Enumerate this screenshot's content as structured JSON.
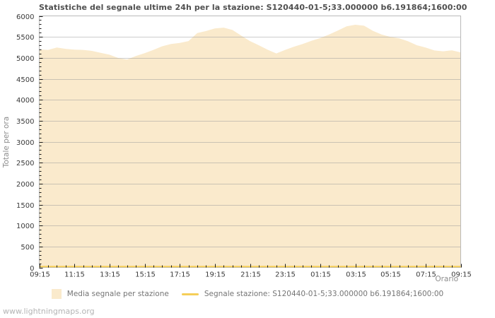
{
  "page": {
    "watermark": "www.lightningmaps.org"
  },
  "chart": {
    "title": "Statistiche del segnale ultime 24h per la stazione: S120440-01-5;33.000000 b6.191864;1600:00",
    "ylabel": "Totale per ora",
    "xlabel": "Orario"
  },
  "legend": {
    "items": [
      {
        "label": "Media segnale per stazione",
        "swatch": "area",
        "color": "#FAEACC"
      },
      {
        "label": "Segnale stazione: S120440-01-5;33.000000 b6.191864;1600:00",
        "swatch": "line",
        "color": "#F5CE58"
      }
    ]
  },
  "chart_data": {
    "type": "area",
    "title": "Statistiche del segnale ultime 24h per la stazione: S120440-01-5;33.000000 b6.191864;1600:00",
    "xlabel": "Orario",
    "ylabel": "Totale per ora",
    "ylim": [
      0,
      6000
    ],
    "y_major_step": 500,
    "y_minor_step": 100,
    "grid": true,
    "legend_position": "bottom",
    "grid_color": "#999999",
    "border_color": "#b9b9b9",
    "tick_color": "#1a1a1a",
    "tick_label_color": "#3a3a3a",
    "x": [
      "09:15",
      "09:45",
      "10:15",
      "10:45",
      "11:15",
      "11:45",
      "12:15",
      "12:45",
      "13:15",
      "13:45",
      "14:15",
      "14:45",
      "15:15",
      "15:45",
      "16:15",
      "16:45",
      "17:15",
      "17:45",
      "18:15",
      "18:45",
      "19:15",
      "19:45",
      "20:15",
      "20:45",
      "21:15",
      "21:45",
      "22:15",
      "22:45",
      "23:15",
      "23:45",
      "00:15",
      "00:45",
      "01:15",
      "01:45",
      "02:15",
      "02:45",
      "03:15",
      "03:45",
      "04:15",
      "04:45",
      "05:15",
      "05:45",
      "06:15",
      "06:45",
      "07:15",
      "07:45",
      "08:15",
      "08:45",
      "09:15"
    ],
    "x_tick_labels": [
      "09:15",
      "11:15",
      "13:15",
      "15:15",
      "17:15",
      "19:15",
      "21:15",
      "23:15",
      "01:15",
      "03:15",
      "05:15",
      "07:15",
      "09:15"
    ],
    "x_major_every": 4,
    "series": [
      {
        "name": "Media segnale per stazione",
        "type": "area",
        "color": "#FAEACC",
        "values": [
          5200,
          5190,
          5245,
          5215,
          5195,
          5190,
          5165,
          5120,
          5075,
          4995,
          4960,
          5045,
          5110,
          5190,
          5275,
          5330,
          5355,
          5400,
          5590,
          5640,
          5700,
          5720,
          5665,
          5530,
          5400,
          5300,
          5195,
          5105,
          5190,
          5265,
          5330,
          5405,
          5470,
          5555,
          5650,
          5750,
          5790,
          5765,
          5645,
          5555,
          5500,
          5465,
          5395,
          5300,
          5245,
          5175,
          5155,
          5180,
          5130
        ]
      },
      {
        "name": "Segnale stazione: S120440-01-5;33.000000 b6.191864;1600:00",
        "type": "line",
        "color": "#F5CE58",
        "values": [
          0,
          0,
          0,
          0,
          0,
          0,
          0,
          0,
          0,
          0,
          0,
          0,
          0,
          0,
          0,
          0,
          0,
          0,
          0,
          0,
          0,
          0,
          0,
          0,
          0,
          0,
          0,
          0,
          0,
          0,
          0,
          0,
          0,
          0,
          0,
          0,
          0,
          0,
          0,
          0,
          0,
          0,
          0,
          0,
          0,
          0,
          0,
          0,
          0
        ]
      }
    ]
  }
}
